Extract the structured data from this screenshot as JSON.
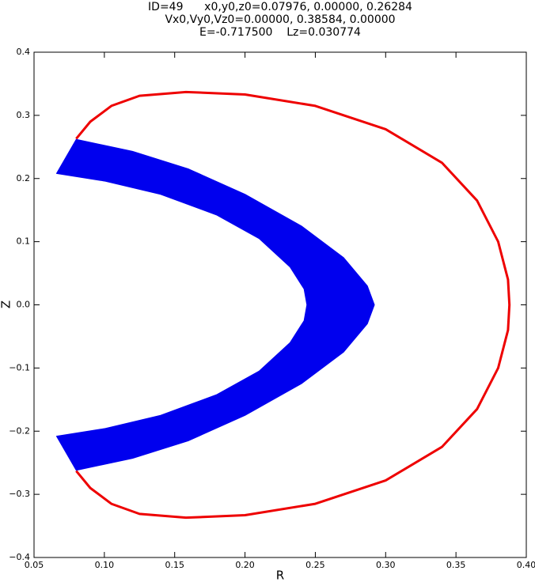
{
  "chart_data": {
    "type": "orbit",
    "title_lines": [
      "ID=49      x0,y0,z0=0.07976, 0.00000, 0.26284",
      "Vx0,Vy0,Vz0=0.00000, 0.38584, 0.00000",
      "E=-0.717500    Lz=0.030774"
    ],
    "xlabel": "R",
    "ylabel": "Z",
    "xlim": [
      0.05,
      0.4
    ],
    "ylim": [
      -0.4,
      0.4
    ],
    "xticks": [
      0.05,
      {
        "value": 0.1,
        "label": "0.10"
      },
      0.15,
      {
        "value": 0.2,
        "label": "0.20"
      },
      0.25,
      {
        "value": 0.3,
        "label": "0.30"
      },
      0.35,
      {
        "value": 0.4,
        "label": "0.40"
      }
    ],
    "yticks": [
      {
        "value": -0.4,
        "label": "−0.4"
      },
      {
        "value": -0.3,
        "label": "−0.3"
      },
      {
        "value": -0.2,
        "label": "−0.2"
      },
      {
        "value": -0.1,
        "label": "−0.1"
      },
      {
        "value": 0,
        "label": "0.0"
      },
      0.1,
      0.2,
      0.3,
      0.4
    ],
    "band": {
      "color": "#0000ee",
      "outer_x": [
        0.08,
        0.12,
        0.16,
        0.2,
        0.24,
        0.27,
        0.287,
        0.292,
        0.287,
        0.27,
        0.24,
        0.2,
        0.16,
        0.12,
        0.08
      ],
      "outer_y": [
        0.262,
        0.243,
        0.215,
        0.175,
        0.125,
        0.075,
        0.03,
        0.0,
        -0.03,
        -0.075,
        -0.125,
        -0.175,
        -0.215,
        -0.243,
        -0.262
      ],
      "inner_x": [
        0.066,
        0.1,
        0.14,
        0.18,
        0.21,
        0.232,
        0.242,
        0.244,
        0.242,
        0.232,
        0.21,
        0.18,
        0.14,
        0.1,
        0.066
      ],
      "inner_y": [
        0.208,
        0.196,
        0.175,
        0.142,
        0.105,
        0.06,
        0.025,
        0.0,
        -0.025,
        -0.06,
        -0.105,
        -0.142,
        -0.175,
        -0.196,
        -0.208
      ]
    },
    "curve": {
      "color": "#ee0000",
      "x": [
        0.08,
        0.09,
        0.105,
        0.125,
        0.158,
        0.2,
        0.25,
        0.3,
        0.34,
        0.365,
        0.38,
        0.387,
        0.388,
        0.387,
        0.38,
        0.365,
        0.34,
        0.3,
        0.25,
        0.2,
        0.158,
        0.125,
        0.105,
        0.09,
        0.08
      ],
      "y": [
        0.263,
        0.29,
        0.315,
        0.331,
        0.337,
        0.333,
        0.315,
        0.278,
        0.225,
        0.165,
        0.1,
        0.04,
        0.0,
        -0.04,
        -0.1,
        -0.165,
        -0.225,
        -0.278,
        -0.315,
        -0.333,
        -0.337,
        -0.331,
        -0.315,
        -0.29,
        -0.263
      ]
    }
  }
}
